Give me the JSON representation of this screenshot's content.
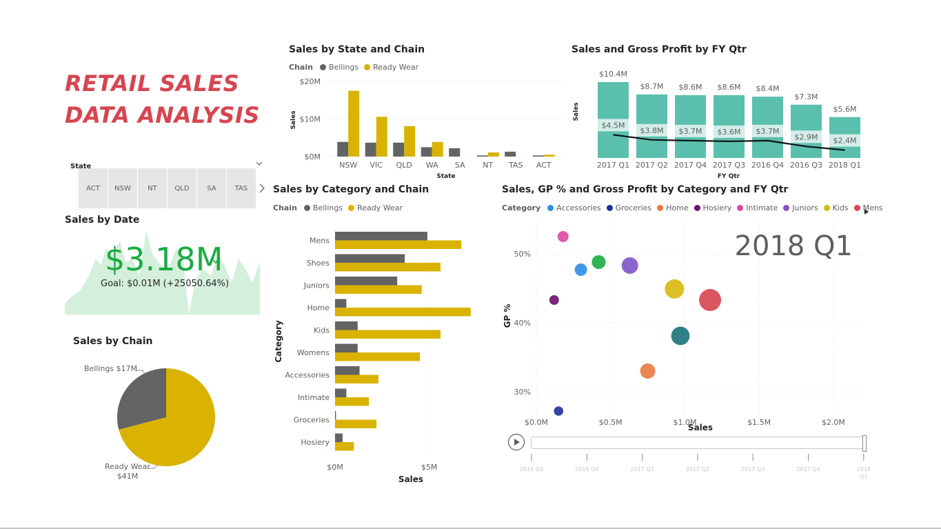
{
  "dashboard": {
    "title_line1": "RETAIL SALES",
    "title_line2": "DATA ANALYSIS"
  },
  "slicer": {
    "label": "State",
    "items": [
      "ACT",
      "NSW",
      "NT",
      "QLD",
      "SA",
      "TAS"
    ],
    "dropdown_icon": "chevron-down-icon",
    "next_icon": "chevron-right-icon"
  },
  "kpi": {
    "title": "Sales by Date",
    "value": "$3.18M",
    "goal": "Goal: $0.01M (+25050.64%)",
    "status_icon": "checkmark-icon",
    "colors": {
      "value": "#1aab40",
      "area": "#d4efdc"
    }
  },
  "pie": {
    "title": "Sales by Chain",
    "label_bellings": "Bellings $17M",
    "label_ready_wear_1": "Ready Wear",
    "label_ready_wear_2": "$41M"
  },
  "legend_chain": {
    "label": "Chain",
    "items": [
      "Bellings",
      "Ready Wear"
    ]
  },
  "legend_category": {
    "label": "Category",
    "items": [
      "Accessories",
      "Groceries",
      "Home",
      "Hosiery",
      "Intimate",
      "Juniors",
      "Kids",
      "Mens"
    ],
    "more_icon": "triangle-right-icon"
  },
  "titles": {
    "state_chain": "Sales by State and Chain",
    "fy_qtr": "Sales and Gross Profit by FY Qtr",
    "category_chain": "Sales by Category and Chain",
    "scatter": "Sales, GP % and Gross Profit by Category and FY Qtr"
  },
  "play_axis": {
    "play_icon": "play-icon",
    "current": "2018 Q1",
    "ticks": [
      "2016 Q3",
      "2016 Q4",
      "2017 Q1",
      "2017 Q2",
      "2017 Q3",
      "2017 Q4",
      "2018 Q1"
    ]
  },
  "colors": {
    "bellings": "#636363",
    "ready_wear": "#d9b300",
    "teal": "#5bbfad",
    "teal_light": "#d3ede8",
    "category": {
      "Accessories": "#2b8ee6",
      "Groceries": "#1f2f9c",
      "Home": "#e8793f",
      "Hosiery": "#6b0f73",
      "Intimate": "#e046a8",
      "Juniors": "#7d55c7",
      "Kids": "#d8b80d",
      "Mens": "#d64550",
      "Womens": "#197278",
      "Shoes": "#1aab40"
    }
  },
  "chart_data": [
    {
      "type": "bar",
      "title": "Sales by State and Chain",
      "xlabel": "State",
      "ylabel": "Sales",
      "categories": [
        "NSW",
        "VIC",
        "QLD",
        "WA",
        "SA",
        "NT",
        "TAS",
        "ACT"
      ],
      "series": [
        {
          "name": "Bellings",
          "values": [
            3.9,
            3.7,
            3.7,
            2.5,
            2.2,
            0.3,
            1.3,
            0.3
          ]
        },
        {
          "name": "Ready Wear",
          "values": [
            17.5,
            10.6,
            8.1,
            3.9,
            0,
            1.1,
            0,
            0.5
          ]
        }
      ],
      "ylim": [
        0,
        20
      ],
      "yticks": [
        "$0M",
        "$10M",
        "$20M"
      ]
    },
    {
      "type": "bar",
      "title": "Sales and Gross Profit by FY Qtr",
      "xlabel": "FY Qtr",
      "ylabel": "Sales",
      "categories": [
        "2017 Q1",
        "2017 Q2",
        "2017 Q4",
        "2017 Q3",
        "2016 Q4",
        "2016 Q3",
        "2018 Q1"
      ],
      "series": [
        {
          "name": "Sales",
          "values": [
            10.4,
            8.7,
            8.6,
            8.6,
            8.4,
            7.3,
            5.6
          ],
          "labels": [
            "$10.4M",
            "$8.7M",
            "$8.6M",
            "$8.6M",
            "$8.4M",
            "$7.3M",
            "$5.6M"
          ]
        },
        {
          "name": "Gross Profit",
          "values": [
            4.5,
            3.8,
            3.7,
            3.6,
            3.7,
            2.9,
            2.4
          ],
          "labels": [
            "$4.5M",
            "$3.8M",
            "$3.7M",
            "$3.6M",
            "$3.7M",
            "$2.9M",
            "$2.4M"
          ]
        }
      ],
      "ylim": [
        0,
        10.4
      ]
    },
    {
      "type": "bar",
      "title": "Sales by Category and Chain",
      "xlabel": "Sales",
      "ylabel": "Category",
      "categories": [
        "Mens",
        "Shoes",
        "Juniors",
        "Home",
        "Kids",
        "Womens",
        "Accessories",
        "Intimate",
        "Groceries",
        "Hosiery"
      ],
      "series": [
        {
          "name": "Bellings",
          "values": [
            4.9,
            3.7,
            3.3,
            0.6,
            1.2,
            1.2,
            1.3,
            0.6,
            0.05,
            0.4
          ]
        },
        {
          "name": "Ready Wear",
          "values": [
            6.7,
            5.6,
            4.6,
            7.2,
            5.6,
            4.5,
            2.3,
            1.8,
            2.2,
            1.0
          ]
        }
      ],
      "xlim": [
        0,
        7.5
      ],
      "xticks": [
        "$0M",
        "$5M"
      ]
    },
    {
      "type": "scatter",
      "title": "Sales, GP % and Gross Profit by Category and FY Qtr",
      "xlabel": "Sales",
      "ylabel": "GP %",
      "xlim": [
        0,
        2.2
      ],
      "ylim": [
        26,
        55
      ],
      "xticks": [
        "$0.0M",
        "$0.5M",
        "$1.0M",
        "$1.5M",
        "$2.0M"
      ],
      "yticks": [
        "30%",
        "40%",
        "50%"
      ],
      "annotation": "2018 Q1",
      "points": [
        {
          "category": "Intimate",
          "x": 0.18,
          "y": 52.5,
          "size": 0.1
        },
        {
          "category": "Accessories",
          "x": 0.3,
          "y": 47.7,
          "size": 0.15
        },
        {
          "category": "Shoes",
          "x": 0.42,
          "y": 48.8,
          "size": 0.2
        },
        {
          "category": "Juniors",
          "x": 0.63,
          "y": 48.3,
          "size": 0.3
        },
        {
          "category": "Hosiery",
          "x": 0.12,
          "y": 43.3,
          "size": 0.05
        },
        {
          "category": "Kids",
          "x": 0.93,
          "y": 44.9,
          "size": 0.4
        },
        {
          "category": "Mens",
          "x": 1.17,
          "y": 43.3,
          "size": 0.5
        },
        {
          "category": "Womens",
          "x": 0.97,
          "y": 38.1,
          "size": 0.37
        },
        {
          "category": "Home",
          "x": 0.75,
          "y": 33.0,
          "size": 0.25
        },
        {
          "category": "Groceries",
          "x": 0.15,
          "y": 27.2,
          "size": 0.04
        }
      ]
    },
    {
      "type": "pie",
      "title": "Sales by Chain",
      "categories": [
        "Bellings",
        "Ready Wear"
      ],
      "values": [
        17,
        41
      ]
    }
  ]
}
